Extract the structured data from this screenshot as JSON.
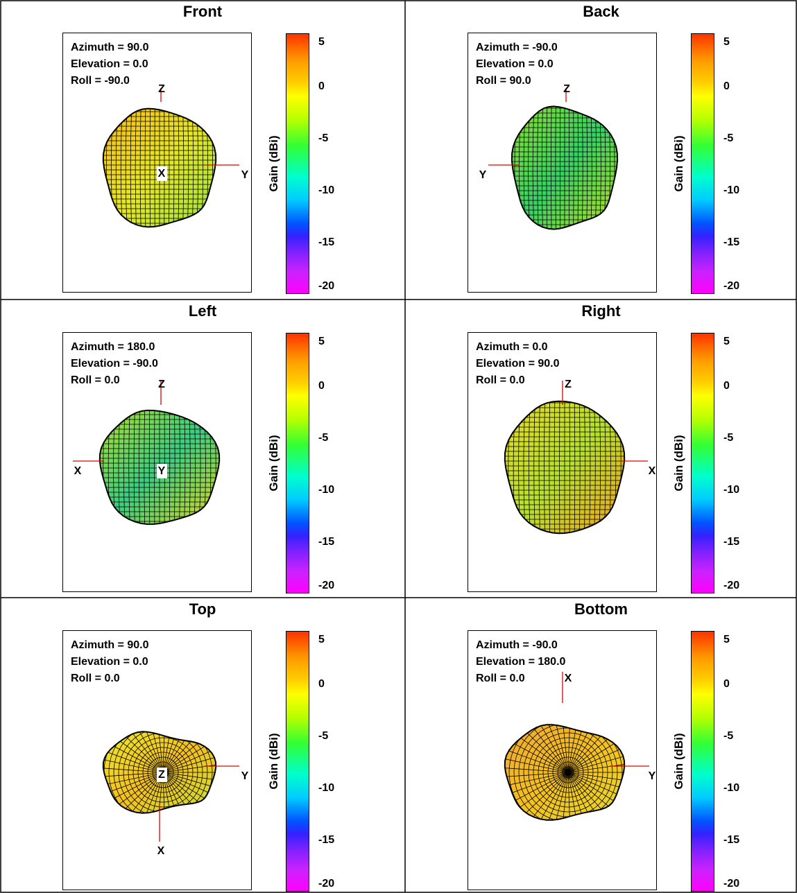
{
  "colorbar": {
    "label": "Gain  (dBi)",
    "ticks": [
      "5",
      "0",
      "-5",
      "-10",
      "-15",
      "-20"
    ],
    "range": [
      -20,
      5
    ]
  },
  "views": [
    {
      "title": "Front",
      "azimuth": "Azimuth = 90.0",
      "elevation": "Elevation = 0.0",
      "roll": "Roll = -90.0",
      "axes": [
        "Z",
        "Y",
        "X"
      ]
    },
    {
      "title": "Back",
      "azimuth": "Azimuth = -90.0",
      "elevation": "Elevation = 0.0",
      "roll": "Roll = 90.0",
      "axes": [
        "Z",
        "Y"
      ]
    },
    {
      "title": "Left",
      "azimuth": "Azimuth = 180.0",
      "elevation": "Elevation = -90.0",
      "roll": "Roll = 0.0",
      "axes": [
        "Z",
        "X",
        "Y"
      ]
    },
    {
      "title": "Right",
      "azimuth": "Azimuth = 0.0",
      "elevation": "Elevation = 90.0",
      "roll": "Roll = 0.0",
      "axes": [
        "Z",
        "X"
      ]
    },
    {
      "title": "Top",
      "azimuth": "Azimuth = 90.0",
      "elevation": "Elevation = 0.0",
      "roll": "Roll = 0.0",
      "axes": [
        "Y",
        "X",
        "Z"
      ]
    },
    {
      "title": "Bottom",
      "azimuth": "Azimuth = -90.0",
      "elevation": "Elevation = 180.0",
      "roll": "Roll = 0.0",
      "axes": [
        "X",
        "Y"
      ]
    }
  ]
}
